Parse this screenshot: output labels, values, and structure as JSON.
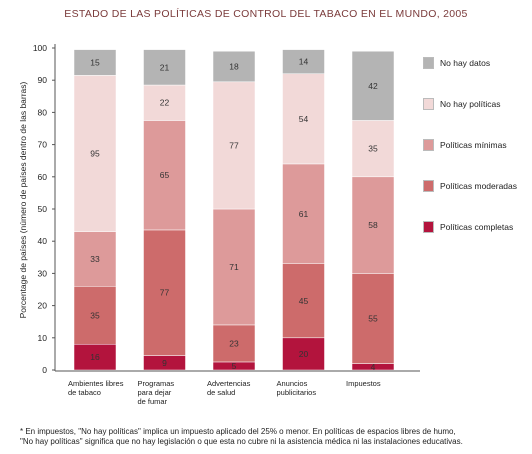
{
  "chart_data": {
    "type": "bar",
    "stacked": true,
    "title": "ESTADO DE LAS POLÍTICAS DE CONTROL DEL TABACO EN EL MUNDO, 2005",
    "ylabel": "Porcentage de países (número de países dentro de las barras)",
    "xlabel": "",
    "ylim": [
      0,
      100
    ],
    "yticks": [
      0,
      10,
      20,
      30,
      40,
      50,
      60,
      70,
      80,
      90,
      100
    ],
    "categories": [
      [
        "Ambientes libres",
        "de tabaco"
      ],
      [
        "Programas",
        "para dejar",
        "de fumar"
      ],
      [
        "Advertencias",
        "de salud"
      ],
      [
        "Anuncios",
        "publicitarios"
      ],
      [
        "Impuestos"
      ]
    ],
    "legend_position": "right",
    "series": [
      {
        "name": "Políticas completas",
        "color": "#b3143d",
        "counts": [
          16,
          9,
          5,
          20,
          4
        ],
        "percent": [
          8,
          4.5,
          2.5,
          10,
          2
        ]
      },
      {
        "name": "Políticas moderadas",
        "color": "#cd6b6b",
        "counts": [
          35,
          77,
          23,
          45,
          55
        ],
        "percent": [
          18,
          39,
          11.5,
          23,
          28
        ]
      },
      {
        "name": "Políticas mínimas",
        "color": "#dd9a9a",
        "counts": [
          33,
          65,
          71,
          61,
          58
        ],
        "percent": [
          17,
          34,
          36,
          31,
          30
        ]
      },
      {
        "name": "No hay políticas",
        "color": "#f2d9d8",
        "counts": [
          95,
          22,
          77,
          54,
          35
        ],
        "percent": [
          48.5,
          11,
          39.5,
          28,
          17.5
        ]
      },
      {
        "name": "No hay datos",
        "color": "#b4b4b4",
        "counts": [
          15,
          21,
          18,
          14,
          42
        ],
        "percent": [
          8,
          11,
          9.5,
          7.5,
          21.5
        ]
      }
    ]
  },
  "footnote": [
    "* En impuestos, \"No hay políticas\" implica un impuesto aplicado del 25% o menor. En políticas de espacios libres de humo,",
    "\"No hay políticas\" significa que no hay legislación o que esta no cubre ni la asistencia médica ni las instalaciones educativas."
  ]
}
